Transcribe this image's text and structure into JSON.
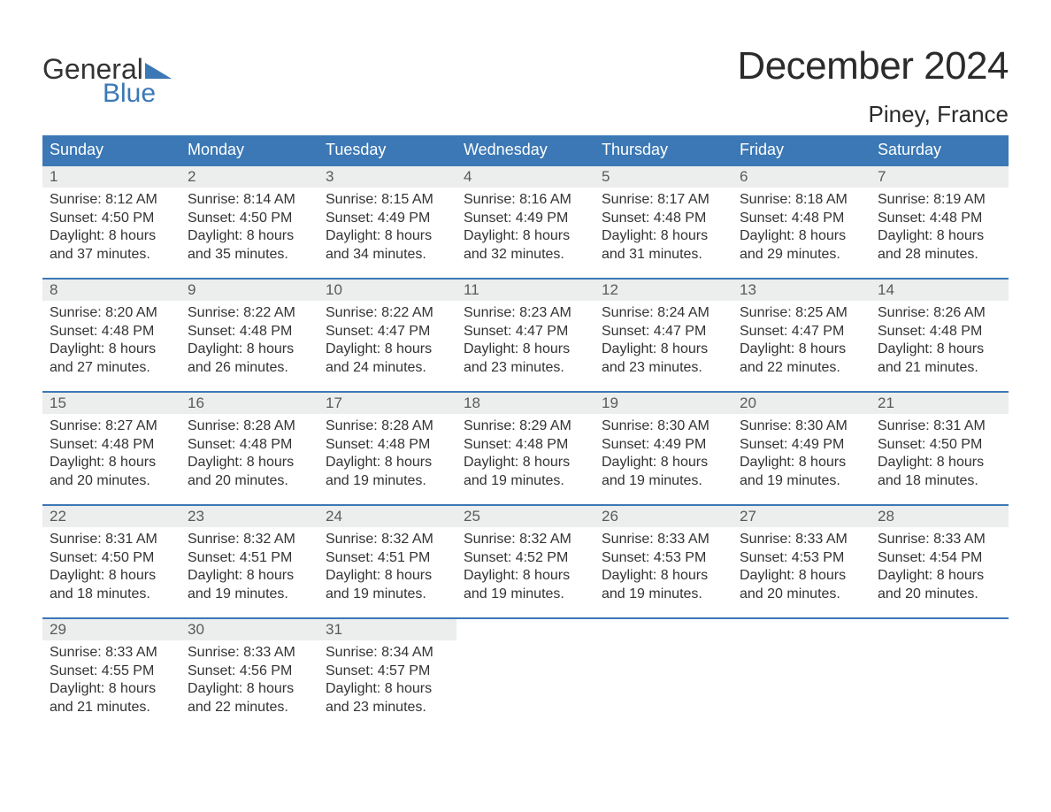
{
  "brand": {
    "word1": "General",
    "word2": "Blue",
    "text_color": "#333333",
    "accent_color": "#3b78b5"
  },
  "title": "December 2024",
  "location": "Piney, France",
  "colors": {
    "header_bg": "#3b78b5",
    "header_text": "#ffffff",
    "daynum_bg": "#eceded",
    "daynum_text": "#5a5a5a",
    "body_text": "#333333",
    "row_border": "#3b78b5",
    "page_bg": "#ffffff"
  },
  "fonts": {
    "title_size_pt": 33,
    "location_size_pt": 20,
    "weekday_size_pt": 14,
    "daynum_size_pt": 13,
    "body_size_pt": 12
  },
  "weekdays": [
    "Sunday",
    "Monday",
    "Tuesday",
    "Wednesday",
    "Thursday",
    "Friday",
    "Saturday"
  ],
  "weeks": [
    [
      {
        "day": "1",
        "sunrise": "Sunrise: 8:12 AM",
        "sunset": "Sunset: 4:50 PM",
        "dl1": "Daylight: 8 hours",
        "dl2": "and 37 minutes."
      },
      {
        "day": "2",
        "sunrise": "Sunrise: 8:14 AM",
        "sunset": "Sunset: 4:50 PM",
        "dl1": "Daylight: 8 hours",
        "dl2": "and 35 minutes."
      },
      {
        "day": "3",
        "sunrise": "Sunrise: 8:15 AM",
        "sunset": "Sunset: 4:49 PM",
        "dl1": "Daylight: 8 hours",
        "dl2": "and 34 minutes."
      },
      {
        "day": "4",
        "sunrise": "Sunrise: 8:16 AM",
        "sunset": "Sunset: 4:49 PM",
        "dl1": "Daylight: 8 hours",
        "dl2": "and 32 minutes."
      },
      {
        "day": "5",
        "sunrise": "Sunrise: 8:17 AM",
        "sunset": "Sunset: 4:48 PM",
        "dl1": "Daylight: 8 hours",
        "dl2": "and 31 minutes."
      },
      {
        "day": "6",
        "sunrise": "Sunrise: 8:18 AM",
        "sunset": "Sunset: 4:48 PM",
        "dl1": "Daylight: 8 hours",
        "dl2": "and 29 minutes."
      },
      {
        "day": "7",
        "sunrise": "Sunrise: 8:19 AM",
        "sunset": "Sunset: 4:48 PM",
        "dl1": "Daylight: 8 hours",
        "dl2": "and 28 minutes."
      }
    ],
    [
      {
        "day": "8",
        "sunrise": "Sunrise: 8:20 AM",
        "sunset": "Sunset: 4:48 PM",
        "dl1": "Daylight: 8 hours",
        "dl2": "and 27 minutes."
      },
      {
        "day": "9",
        "sunrise": "Sunrise: 8:22 AM",
        "sunset": "Sunset: 4:48 PM",
        "dl1": "Daylight: 8 hours",
        "dl2": "and 26 minutes."
      },
      {
        "day": "10",
        "sunrise": "Sunrise: 8:22 AM",
        "sunset": "Sunset: 4:47 PM",
        "dl1": "Daylight: 8 hours",
        "dl2": "and 24 minutes."
      },
      {
        "day": "11",
        "sunrise": "Sunrise: 8:23 AM",
        "sunset": "Sunset: 4:47 PM",
        "dl1": "Daylight: 8 hours",
        "dl2": "and 23 minutes."
      },
      {
        "day": "12",
        "sunrise": "Sunrise: 8:24 AM",
        "sunset": "Sunset: 4:47 PM",
        "dl1": "Daylight: 8 hours",
        "dl2": "and 23 minutes."
      },
      {
        "day": "13",
        "sunrise": "Sunrise: 8:25 AM",
        "sunset": "Sunset: 4:47 PM",
        "dl1": "Daylight: 8 hours",
        "dl2": "and 22 minutes."
      },
      {
        "day": "14",
        "sunrise": "Sunrise: 8:26 AM",
        "sunset": "Sunset: 4:48 PM",
        "dl1": "Daylight: 8 hours",
        "dl2": "and 21 minutes."
      }
    ],
    [
      {
        "day": "15",
        "sunrise": "Sunrise: 8:27 AM",
        "sunset": "Sunset: 4:48 PM",
        "dl1": "Daylight: 8 hours",
        "dl2": "and 20 minutes."
      },
      {
        "day": "16",
        "sunrise": "Sunrise: 8:28 AM",
        "sunset": "Sunset: 4:48 PM",
        "dl1": "Daylight: 8 hours",
        "dl2": "and 20 minutes."
      },
      {
        "day": "17",
        "sunrise": "Sunrise: 8:28 AM",
        "sunset": "Sunset: 4:48 PM",
        "dl1": "Daylight: 8 hours",
        "dl2": "and 19 minutes."
      },
      {
        "day": "18",
        "sunrise": "Sunrise: 8:29 AM",
        "sunset": "Sunset: 4:48 PM",
        "dl1": "Daylight: 8 hours",
        "dl2": "and 19 minutes."
      },
      {
        "day": "19",
        "sunrise": "Sunrise: 8:30 AM",
        "sunset": "Sunset: 4:49 PM",
        "dl1": "Daylight: 8 hours",
        "dl2": "and 19 minutes."
      },
      {
        "day": "20",
        "sunrise": "Sunrise: 8:30 AM",
        "sunset": "Sunset: 4:49 PM",
        "dl1": "Daylight: 8 hours",
        "dl2": "and 19 minutes."
      },
      {
        "day": "21",
        "sunrise": "Sunrise: 8:31 AM",
        "sunset": "Sunset: 4:50 PM",
        "dl1": "Daylight: 8 hours",
        "dl2": "and 18 minutes."
      }
    ],
    [
      {
        "day": "22",
        "sunrise": "Sunrise: 8:31 AM",
        "sunset": "Sunset: 4:50 PM",
        "dl1": "Daylight: 8 hours",
        "dl2": "and 18 minutes."
      },
      {
        "day": "23",
        "sunrise": "Sunrise: 8:32 AM",
        "sunset": "Sunset: 4:51 PM",
        "dl1": "Daylight: 8 hours",
        "dl2": "and 19 minutes."
      },
      {
        "day": "24",
        "sunrise": "Sunrise: 8:32 AM",
        "sunset": "Sunset: 4:51 PM",
        "dl1": "Daylight: 8 hours",
        "dl2": "and 19 minutes."
      },
      {
        "day": "25",
        "sunrise": "Sunrise: 8:32 AM",
        "sunset": "Sunset: 4:52 PM",
        "dl1": "Daylight: 8 hours",
        "dl2": "and 19 minutes."
      },
      {
        "day": "26",
        "sunrise": "Sunrise: 8:33 AM",
        "sunset": "Sunset: 4:53 PM",
        "dl1": "Daylight: 8 hours",
        "dl2": "and 19 minutes."
      },
      {
        "day": "27",
        "sunrise": "Sunrise: 8:33 AM",
        "sunset": "Sunset: 4:53 PM",
        "dl1": "Daylight: 8 hours",
        "dl2": "and 20 minutes."
      },
      {
        "day": "28",
        "sunrise": "Sunrise: 8:33 AM",
        "sunset": "Sunset: 4:54 PM",
        "dl1": "Daylight: 8 hours",
        "dl2": "and 20 minutes."
      }
    ],
    [
      {
        "day": "29",
        "sunrise": "Sunrise: 8:33 AM",
        "sunset": "Sunset: 4:55 PM",
        "dl1": "Daylight: 8 hours",
        "dl2": "and 21 minutes."
      },
      {
        "day": "30",
        "sunrise": "Sunrise: 8:33 AM",
        "sunset": "Sunset: 4:56 PM",
        "dl1": "Daylight: 8 hours",
        "dl2": "and 22 minutes."
      },
      {
        "day": "31",
        "sunrise": "Sunrise: 8:34 AM",
        "sunset": "Sunset: 4:57 PM",
        "dl1": "Daylight: 8 hours",
        "dl2": "and 23 minutes."
      },
      null,
      null,
      null,
      null
    ]
  ]
}
